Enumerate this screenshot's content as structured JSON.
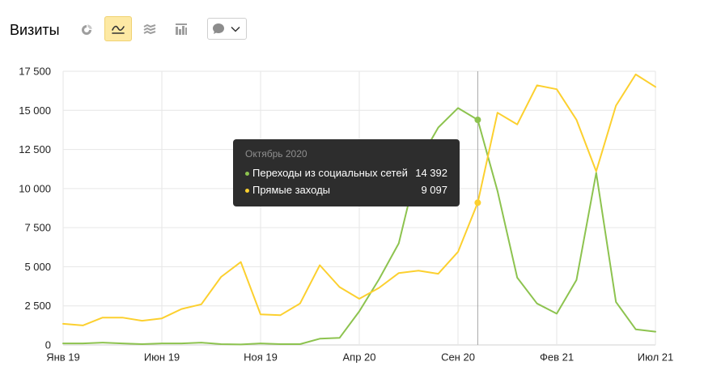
{
  "header": {
    "chart_type_buttons": [
      {
        "icon": "pie-chart-icon",
        "active": false
      },
      {
        "icon": "line-chart-icon",
        "active": true
      },
      {
        "icon": "stacked-area-icon",
        "active": false
      },
      {
        "icon": "bar-chart-icon",
        "active": false
      }
    ],
    "annotations_dropdown": {
      "icon": "speech-bubble-icon",
      "chevron": "chevron-down-icon"
    }
  },
  "colors": {
    "active_button_bg": "#fde9a4",
    "active_button_border": "#f0d272",
    "tooltip_bg": "#2d2d2d",
    "crosshair": "#a6a6a6"
  },
  "tooltip": {
    "title": "Октябрь 2020",
    "values": [
      "14 392",
      "9 097"
    ]
  },
  "chart_data": {
    "type": "line",
    "title": "Визиты",
    "grid": true,
    "x": [
      "2019-01",
      "2019-02",
      "2019-03",
      "2019-04",
      "2019-05",
      "2019-06",
      "2019-07",
      "2019-08",
      "2019-09",
      "2019-10",
      "2019-11",
      "2019-12",
      "2020-01",
      "2020-02",
      "2020-03",
      "2020-04",
      "2020-05",
      "2020-06",
      "2020-07",
      "2020-08",
      "2020-09",
      "2020-10",
      "2020-11",
      "2020-12",
      "2021-01",
      "2021-02",
      "2021-03",
      "2021-04",
      "2021-05",
      "2021-06",
      "2021-07"
    ],
    "xticks": [
      {
        "x": "2019-01",
        "label": "Янв 19"
      },
      {
        "x": "2019-06",
        "label": "Июн 19"
      },
      {
        "x": "2019-11",
        "label": "Ноя 19"
      },
      {
        "x": "2020-04",
        "label": "Апр 20"
      },
      {
        "x": "2020-09",
        "label": "Сен 20"
      },
      {
        "x": "2021-02",
        "label": "Фев 21"
      },
      {
        "x": "2021-07",
        "label": "Июл 21"
      }
    ],
    "ylim": [
      0,
      17500
    ],
    "yticks": [
      {
        "value": 0,
        "label": "0"
      },
      {
        "value": 2500,
        "label": "2 500"
      },
      {
        "value": 5000,
        "label": "5 000"
      },
      {
        "value": 7500,
        "label": "7 500"
      },
      {
        "value": 10000,
        "label": "10 000"
      },
      {
        "value": 12500,
        "label": "12 500"
      },
      {
        "value": 15000,
        "label": "15 000"
      },
      {
        "value": 17500,
        "label": "17 500"
      }
    ],
    "highlight": "2020-10",
    "series": [
      {
        "name": "Переходы из социальных сетей",
        "color": "#8dc34f",
        "values": [
          100,
          100,
          150,
          100,
          50,
          100,
          100,
          150,
          50,
          30,
          100,
          50,
          50,
          400,
          450,
          2150,
          4200,
          6500,
          11700,
          13900,
          15150,
          14392,
          9850,
          4300,
          2650,
          2000,
          4150,
          11000,
          2750,
          1000,
          850
        ]
      },
      {
        "name": "Прямые заходы",
        "color": "#fcd02f",
        "values": [
          1350,
          1250,
          1750,
          1750,
          1550,
          1700,
          2300,
          2600,
          4350,
          5300,
          1950,
          1900,
          2650,
          5100,
          3700,
          2950,
          3650,
          4600,
          4750,
          4550,
          5950,
          9097,
          14850,
          14100,
          16600,
          16350,
          14400,
          11100,
          15300,
          17300,
          16500
        ]
      }
    ]
  }
}
